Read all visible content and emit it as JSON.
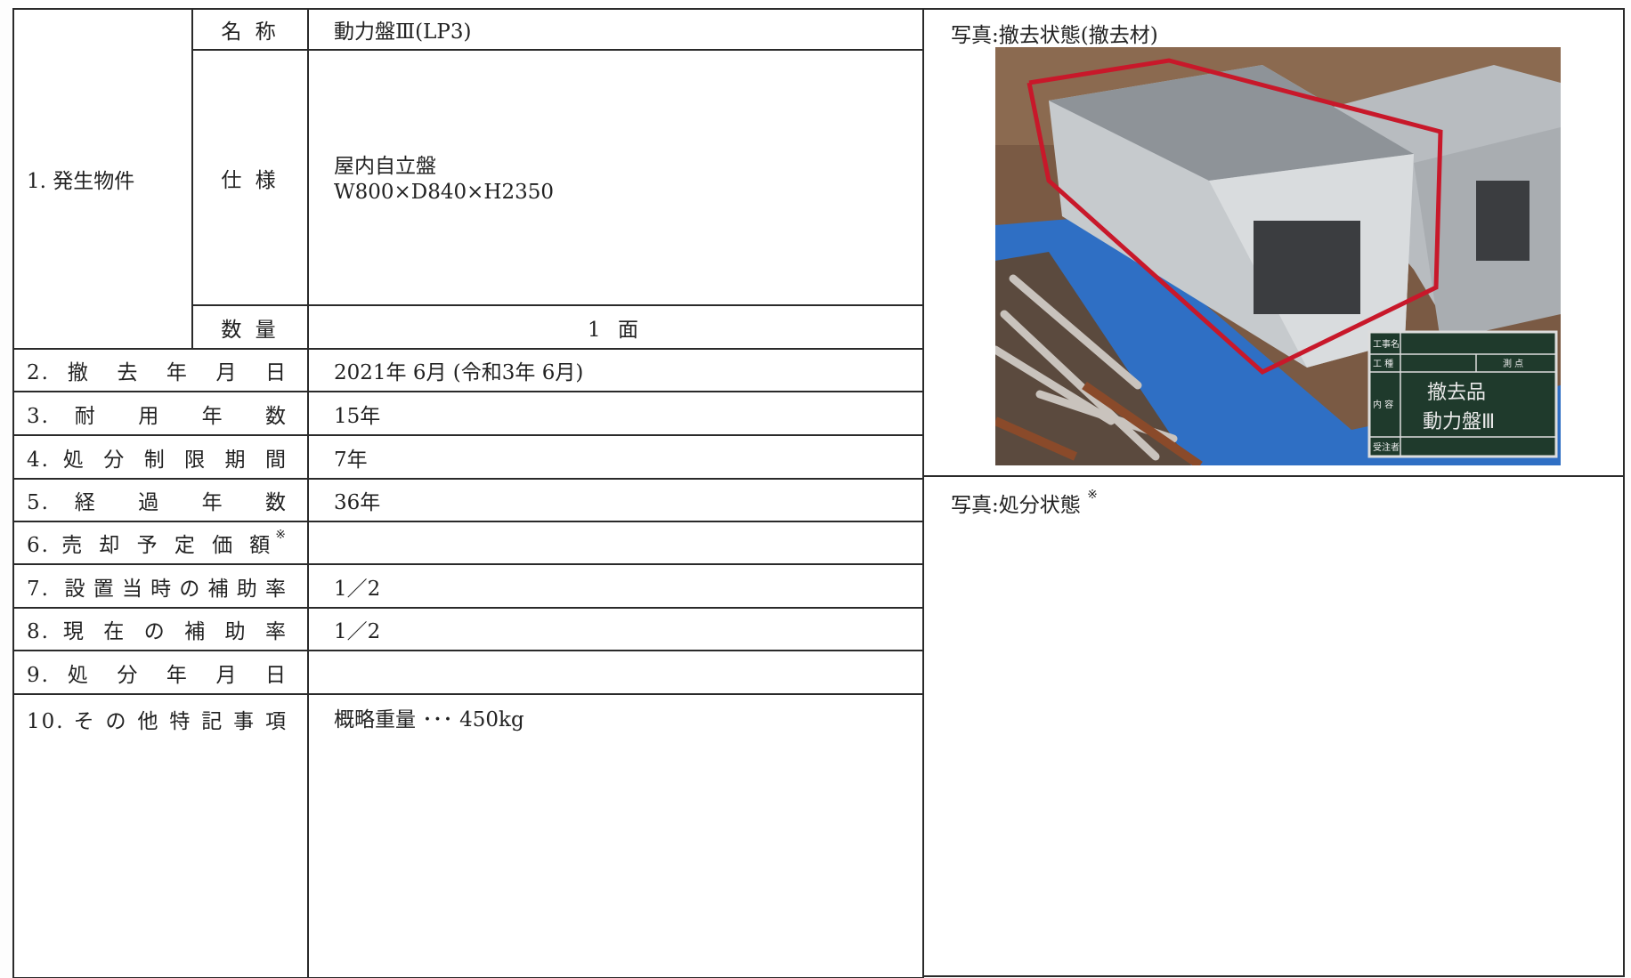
{
  "item1": {
    "label": "1. 発生物件",
    "name_label": "名 称",
    "name": "動力盤Ⅲ(LP3)",
    "spec_label": "仕 様",
    "spec_lines": [
      "屋内自立盤",
      "W800×D840×H2350"
    ],
    "qty_label": "数 量",
    "qty": "1 面"
  },
  "rows": [
    {
      "label": "2. 撤 去 年 月 日",
      "value": "2021年 6月 (令和3年 6月)"
    },
    {
      "label": "3. 耐 用 年 数",
      "value": "15年"
    },
    {
      "label": "4. 処 分 制 限 期 間",
      "value": "7年"
    },
    {
      "label": "5. 経 過 年 数",
      "value": "36年"
    },
    {
      "label": "6. 売 却 予 定 価 額",
      "note": "※"
    },
    {
      "label": "7. 設置当時の補助率",
      "value": "1／2"
    },
    {
      "label": "8. 現 在 の 補 助 率",
      "value": "1／2"
    },
    {
      "label": "9. 処 分 年 月 日"
    },
    {
      "label": "10. そ の 他 特 記 事 項",
      "value": "概略重量 ･･･ 450kg"
    }
  ],
  "photo1": {
    "caption": "写真:撤去状態(撤去材)",
    "sign": {
      "row1": "工事名",
      "row2": "工 種",
      "row2b": "測 点",
      "row3": "内 容",
      "row4": "受注者",
      "lines": [
        "撤去品",
        "動力盤Ⅲ"
      ]
    }
  },
  "photo2": {
    "caption": "写真:処分状態",
    "note": "※"
  }
}
